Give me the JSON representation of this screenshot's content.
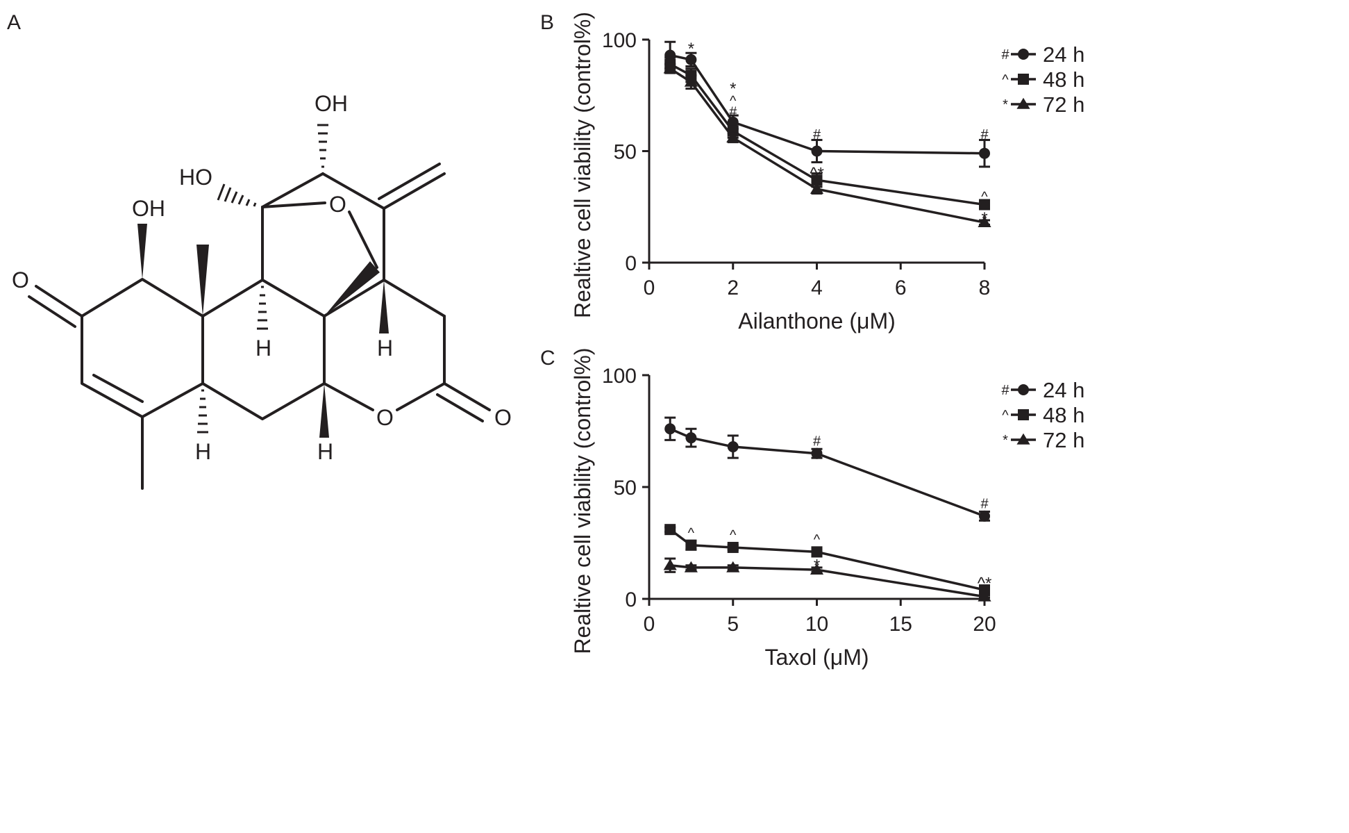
{
  "figure": {
    "panels": [
      {
        "id": "A",
        "label": "A"
      },
      {
        "id": "B",
        "label": "B"
      },
      {
        "id": "C",
        "label": "C"
      }
    ]
  },
  "structure": {
    "atom_labels": {
      "oh_top": "OH",
      "ho_left": "HO",
      "oh_ring_a": "OH",
      "o_ketone": "O",
      "o_bridge": "O",
      "o_lactone": "O",
      "o_carbonyl": "O",
      "h_c9": "H",
      "h_c14": "H",
      "h_c5": "H",
      "h_c7": "H"
    }
  },
  "chart_data": [
    {
      "panel": "B",
      "type": "line",
      "title": "",
      "xlabel": "Ailanthone (μM)",
      "ylabel": "Realtive cell viability (control%)",
      "xlim": [
        0,
        8
      ],
      "ylim": [
        0,
        100
      ],
      "xticks": [
        "0",
        "2",
        "4",
        "6",
        "8"
      ],
      "yticks": [
        "0",
        "50",
        "100"
      ],
      "x": [
        0.5,
        1,
        2,
        4,
        8
      ],
      "series": [
        {
          "name": "24 h",
          "marker": "circle",
          "legend_mark": "#",
          "values": [
            93,
            91,
            63,
            50,
            49
          ],
          "errors": [
            6,
            3,
            3,
            5,
            6
          ]
        },
        {
          "name": "48 h",
          "marker": "square",
          "legend_mark": "^",
          "values": [
            89,
            84,
            59,
            37,
            26
          ],
          "errors": [
            3,
            3,
            3,
            3,
            2
          ]
        },
        {
          "name": "72 h",
          "marker": "triangle",
          "legend_mark": "*",
          "values": [
            87,
            81,
            56,
            33,
            18
          ],
          "errors": [
            2,
            3,
            2,
            2,
            1
          ]
        }
      ],
      "annotations": [
        {
          "x": 1,
          "y": 96,
          "text": "*",
          "kind": "sig-mark"
        },
        {
          "x": 2,
          "y": 78,
          "text": "*",
          "kind": "sig-mark"
        },
        {
          "x": 2,
          "y": 73,
          "text": "^",
          "kind": "marker-label"
        },
        {
          "x": 2,
          "y": 68,
          "text": "#",
          "kind": "marker-label"
        },
        {
          "x": 4,
          "y": 58,
          "text": "#",
          "kind": "marker-label"
        },
        {
          "x": 4,
          "y": 40,
          "text": "^*",
          "kind": "sig-mark"
        },
        {
          "x": 8,
          "y": 58,
          "text": "#",
          "kind": "marker-label"
        },
        {
          "x": 8,
          "y": 30,
          "text": "^",
          "kind": "marker-label"
        },
        {
          "x": 8,
          "y": 20,
          "text": "*",
          "kind": "sig-mark"
        }
      ],
      "legend_position": "top-right",
      "grid": false
    },
    {
      "panel": "C",
      "type": "line",
      "title": "",
      "xlabel": "Taxol (μM)",
      "ylabel": "Realtive cell viability (control%)",
      "xlim": [
        0,
        20
      ],
      "ylim": [
        0,
        100
      ],
      "xticks": [
        "0",
        "5",
        "10",
        "15",
        "20"
      ],
      "yticks": [
        "0",
        "50",
        "100"
      ],
      "x": [
        1.25,
        2.5,
        5,
        10,
        20
      ],
      "series": [
        {
          "name": "24 h",
          "marker": "circle",
          "legend_mark": "#",
          "values": [
            76,
            72,
            68,
            65,
            37
          ],
          "errors": [
            5,
            4,
            5,
            2,
            2
          ]
        },
        {
          "name": "48 h",
          "marker": "square",
          "legend_mark": "^",
          "values": [
            31,
            24,
            23,
            21,
            4
          ],
          "errors": [
            1,
            2,
            1,
            2,
            1
          ]
        },
        {
          "name": "72 h",
          "marker": "triangle",
          "legend_mark": "*",
          "values": [
            15,
            14,
            14,
            13,
            1
          ],
          "errors": [
            3,
            1,
            1,
            1,
            0.5
          ]
        }
      ],
      "annotations": [
        {
          "x": 10,
          "y": 71,
          "text": "#",
          "kind": "marker-label"
        },
        {
          "x": 20,
          "y": 43,
          "text": "#",
          "kind": "marker-label"
        },
        {
          "x": 2.5,
          "y": 30,
          "text": "^",
          "kind": "marker-label"
        },
        {
          "x": 5,
          "y": 29,
          "text": "^",
          "kind": "marker-label"
        },
        {
          "x": 10,
          "y": 27,
          "text": "^",
          "kind": "marker-label"
        },
        {
          "x": 10,
          "y": 15,
          "text": "*",
          "kind": "sig-mark"
        },
        {
          "x": 20,
          "y": 7,
          "text": "^*",
          "kind": "sig-mark"
        }
      ],
      "legend_position": "top-right",
      "grid": false
    }
  ]
}
